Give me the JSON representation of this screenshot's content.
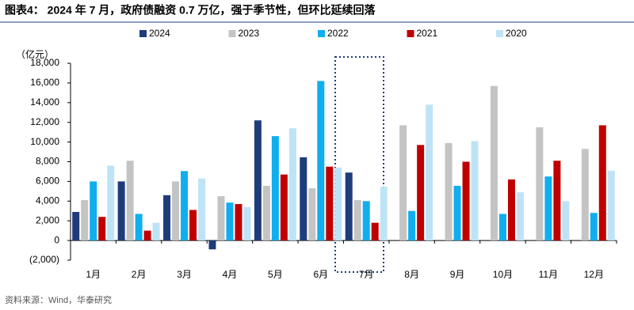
{
  "chart_data": {
    "type": "bar",
    "title": "图表4： 2024 年 7 月，政府债融资 0.7 万亿，强于季节性，但环比延续回落",
    "y_axis_label": "（亿元）",
    "source": "资料来源：Wind，华泰研究",
    "categories": [
      "1月",
      "2月",
      "3月",
      "4月",
      "5月",
      "6月",
      "7月",
      "8月",
      "9月",
      "10月",
      "11月",
      "12月"
    ],
    "series": [
      {
        "name": "2024",
        "color": "#1f3c7a",
        "values": [
          2900,
          6000,
          4600,
          -900,
          12200,
          8450,
          6900,
          null,
          null,
          null,
          null,
          null
        ]
      },
      {
        "name": "2023",
        "color": "#c4c4c4",
        "values": [
          4100,
          8100,
          6000,
          4500,
          5550,
          5300,
          4100,
          11700,
          9900,
          15700,
          11500,
          9300
        ]
      },
      {
        "name": "2022",
        "color": "#10aeef",
        "values": [
          6000,
          2700,
          7050,
          3850,
          10600,
          16200,
          4000,
          3000,
          5550,
          2700,
          6500,
          2800
        ]
      },
      {
        "name": "2021",
        "color": "#c00000",
        "values": [
          2400,
          1000,
          3100,
          3700,
          6700,
          7500,
          1800,
          9700,
          8000,
          6200,
          8100,
          11700
        ]
      },
      {
        "name": "2020",
        "color": "#bfe3f6",
        "values": [
          7600,
          1800,
          6300,
          3400,
          11400,
          7400,
          5450,
          13800,
          10100,
          4900,
          4000,
          7100
        ]
      }
    ],
    "ylim": [
      -2000,
      18000
    ],
    "yticks": [
      {
        "value": -2000,
        "label": "(2,000)"
      },
      0,
      {
        "value": 2000,
        "label": "2,000"
      },
      {
        "value": 4000,
        "label": "4,000"
      },
      {
        "value": 6000,
        "label": "6,000"
      },
      {
        "value": 8000,
        "label": "8,000"
      },
      {
        "value": 10000,
        "label": "10,000"
      },
      {
        "value": 12000,
        "label": "12,000"
      },
      {
        "value": 14000,
        "label": "14,000"
      },
      {
        "value": 16000,
        "label": "16,000"
      },
      {
        "value": 18000,
        "label": "18,000"
      }
    ],
    "grid": false,
    "legend": "top"
  }
}
